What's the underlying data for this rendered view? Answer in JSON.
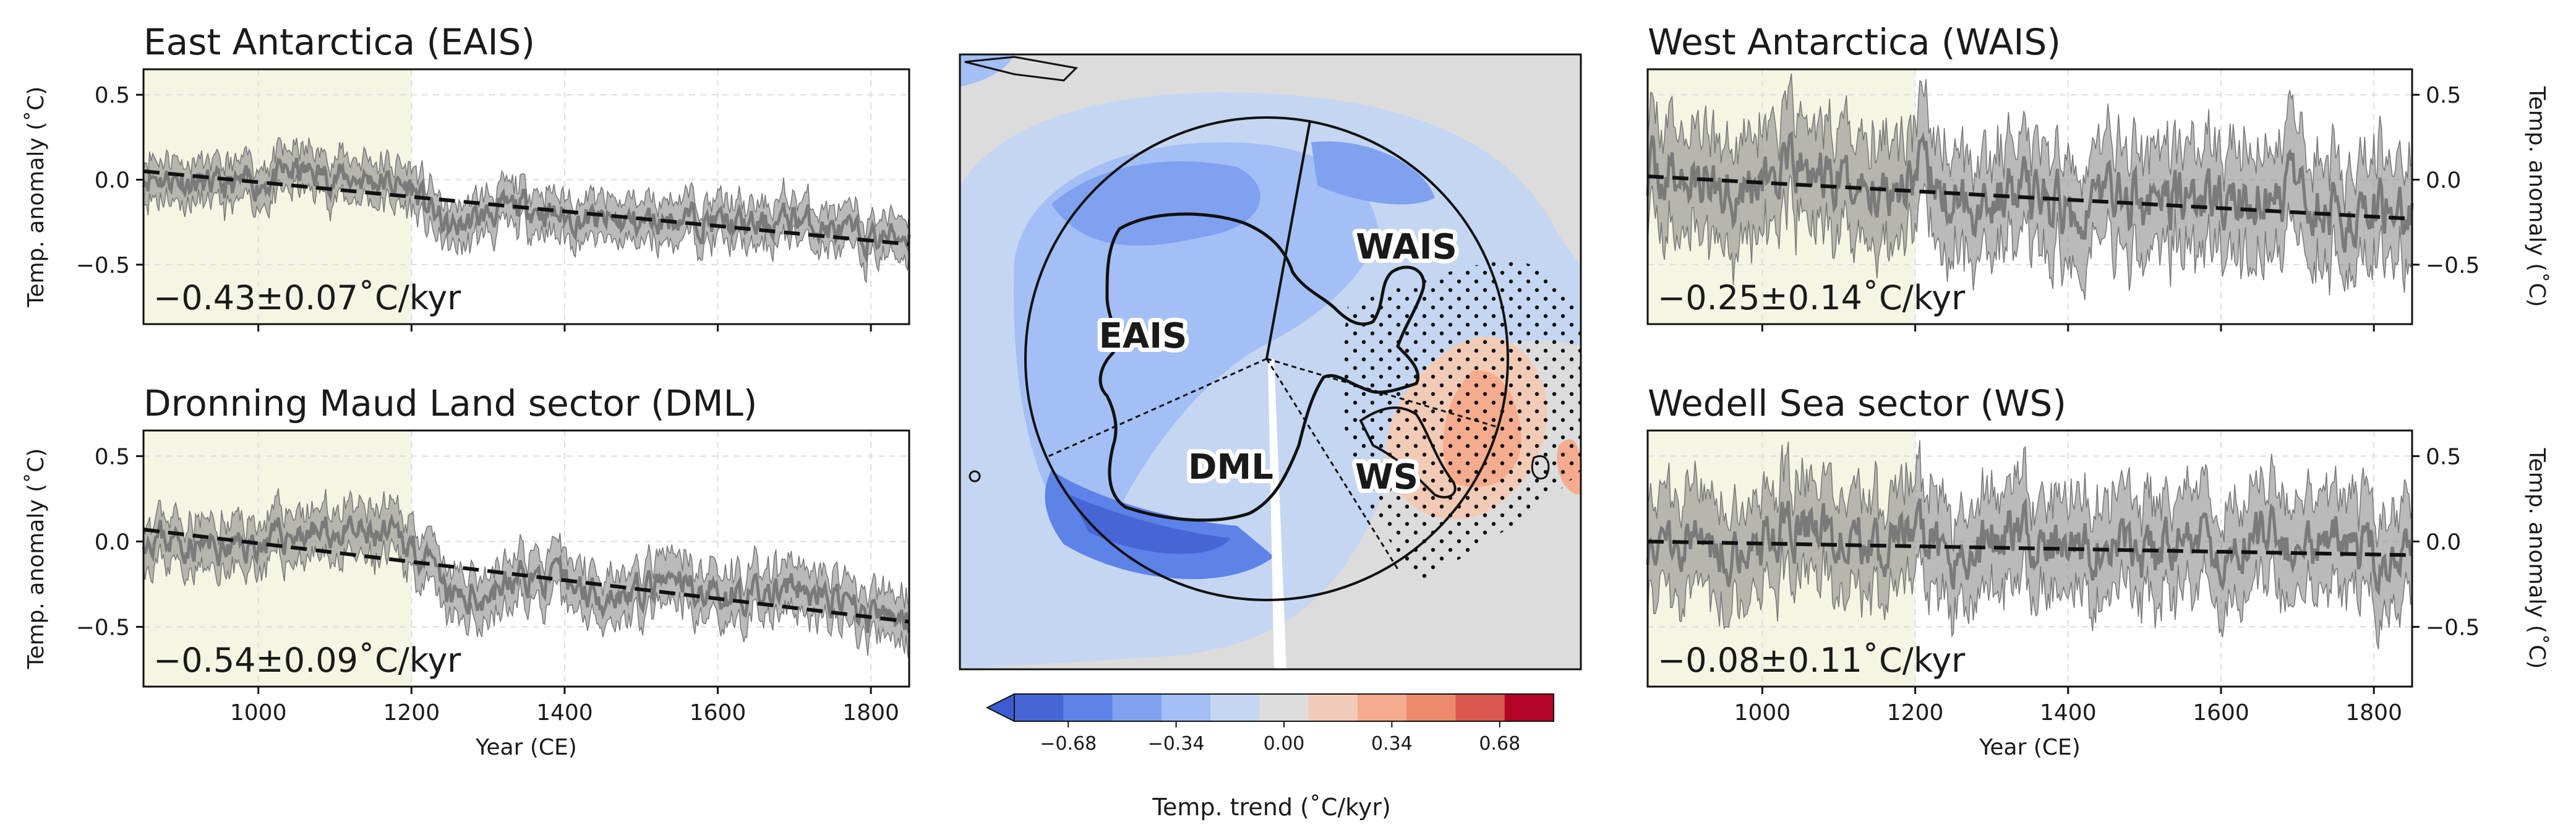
{
  "chart_data": [
    {
      "type": "line",
      "id": "eais",
      "title": "East Antarctica (EAIS)",
      "xlabel": "",
      "ylabel": "Temp. anomaly (˚C)",
      "xlim": [
        850,
        1850
      ],
      "ylim": [
        -0.85,
        0.65
      ],
      "xticks": [
        1000,
        1200,
        1400,
        1600,
        1800
      ],
      "yticks": [
        -0.5,
        0.0,
        0.5
      ],
      "ytick_labels": [
        "−0.5",
        "0.0",
        "0.5"
      ],
      "shade_range": [
        850,
        1200
      ],
      "trend_label": "−0.43±0.07˚C/kyr",
      "trend_line": {
        "x": [
          850,
          1850
        ],
        "y": [
          0.05,
          -0.38
        ]
      },
      "series_mean_anchor": {
        "x": [
          850,
          900,
          950,
          1000,
          1050,
          1100,
          1150,
          1200,
          1250,
          1300,
          1350,
          1400,
          1450,
          1500,
          1550,
          1600,
          1650,
          1700,
          1750,
          1800,
          1850
        ],
        "y": [
          0.03,
          0.0,
          -0.05,
          -0.02,
          0.05,
          0.02,
          0.0,
          -0.05,
          -0.3,
          -0.2,
          -0.15,
          -0.22,
          -0.25,
          -0.25,
          -0.22,
          -0.25,
          -0.28,
          -0.22,
          -0.3,
          -0.35,
          -0.32
        ]
      },
      "band_halfwidth": 0.12,
      "noise": 0.09
    },
    {
      "type": "line",
      "id": "dml",
      "title": "Dronning Maud Land sector (DML)",
      "xlabel": "Year (CE)",
      "ylabel": "Temp. anomaly (˚C)",
      "xlim": [
        850,
        1850
      ],
      "ylim": [
        -0.85,
        0.65
      ],
      "xticks": [
        1000,
        1200,
        1400,
        1600,
        1800
      ],
      "yticks": [
        -0.5,
        0.0,
        0.5
      ],
      "ytick_labels": [
        "−0.5",
        "0.0",
        "0.5"
      ],
      "shade_range": [
        850,
        1200
      ],
      "trend_label": "−0.54±0.09˚C/kyr",
      "trend_line": {
        "x": [
          850,
          1850
        ],
        "y": [
          0.07,
          -0.47
        ]
      },
      "series_mean_anchor": {
        "x": [
          850,
          900,
          950,
          1000,
          1050,
          1100,
          1150,
          1200,
          1250,
          1300,
          1350,
          1400,
          1450,
          1500,
          1550,
          1600,
          1650,
          1700,
          1750,
          1800,
          1850
        ],
        "y": [
          0.05,
          0.0,
          -0.05,
          -0.02,
          0.05,
          0.05,
          0.02,
          0.0,
          -0.35,
          -0.3,
          -0.2,
          -0.25,
          -0.3,
          -0.3,
          -0.25,
          -0.3,
          -0.32,
          -0.28,
          -0.35,
          -0.45,
          -0.45
        ]
      },
      "band_halfwidth": 0.14,
      "noise": 0.1
    },
    {
      "type": "line",
      "id": "wais",
      "title": "West Antarctica (WAIS)",
      "xlabel": "",
      "ylabel": "Temp. anomaly (˚C)",
      "xlim": [
        850,
        1850
      ],
      "ylim": [
        -0.85,
        0.65
      ],
      "xticks": [
        1000,
        1200,
        1400,
        1600,
        1800
      ],
      "yticks": [
        -0.5,
        0.0,
        0.5
      ],
      "ytick_labels": [
        "−0.5",
        "0.0",
        "0.5"
      ],
      "shade_range": [
        850,
        1200
      ],
      "trend_label": "−0.25±0.14˚C/kyr",
      "trend_line": {
        "x": [
          850,
          1850
        ],
        "y": [
          0.02,
          -0.23
        ]
      },
      "series_mean_anchor": {
        "x": [
          850,
          900,
          950,
          1000,
          1050,
          1100,
          1150,
          1200,
          1250,
          1300,
          1350,
          1400,
          1450,
          1500,
          1550,
          1600,
          1650,
          1700,
          1750,
          1800,
          1850
        ],
        "y": [
          0.05,
          0.0,
          -0.05,
          0.0,
          0.05,
          -0.02,
          -0.05,
          0.05,
          -0.15,
          -0.1,
          -0.05,
          -0.2,
          -0.05,
          -0.15,
          -0.1,
          -0.15,
          -0.12,
          -0.05,
          -0.2,
          -0.15,
          -0.18
        ]
      },
      "band_halfwidth": 0.3,
      "noise": 0.18
    },
    {
      "type": "line",
      "id": "ws",
      "title": "Wedell Sea sector (WS)",
      "xlabel": "Year (CE)",
      "ylabel": "Temp. anomaly (˚C)",
      "xlim": [
        850,
        1850
      ],
      "ylim": [
        -0.85,
        0.65
      ],
      "xticks": [
        1000,
        1200,
        1400,
        1600,
        1800
      ],
      "yticks": [
        -0.5,
        0.0,
        0.5
      ],
      "ytick_labels": [
        "−0.5",
        "0.0",
        "0.5"
      ],
      "shade_range": [
        850,
        1200
      ],
      "trend_label": "−0.08±0.11˚C/kyr",
      "trend_line": {
        "x": [
          850,
          1850
        ],
        "y": [
          0.0,
          -0.08
        ]
      },
      "series_mean_anchor": {
        "x": [
          850,
          900,
          950,
          1000,
          1050,
          1100,
          1150,
          1200,
          1250,
          1300,
          1350,
          1400,
          1450,
          1500,
          1550,
          1600,
          1650,
          1700,
          1750,
          1800,
          1850
        ],
        "y": [
          0.0,
          0.05,
          -0.05,
          0.0,
          0.1,
          0.05,
          -0.05,
          0.05,
          -0.1,
          0.0,
          0.05,
          -0.1,
          0.0,
          -0.15,
          0.0,
          -0.05,
          0.05,
          -0.1,
          0.0,
          -0.1,
          -0.05
        ]
      },
      "band_halfwidth": 0.28,
      "noise": 0.17
    },
    {
      "type": "heatmap",
      "id": "map",
      "regions": [
        "EAIS",
        "WAIS",
        "DML",
        "WS"
      ],
      "colorbar": {
        "label": "Temp. trend (˚C/kyr)",
        "ticks": [
          -0.68,
          -0.34,
          0.0,
          0.34,
          0.68
        ],
        "tick_labels": [
          "−0.68",
          "−0.34",
          "0.00",
          "0.34",
          "0.68"
        ],
        "range": [
          -0.85,
          0.85
        ],
        "colors": [
          "#4766d6",
          "#5d82e8",
          "#7fa1f0",
          "#a3bff5",
          "#c5d6f2",
          "#dcdcdc",
          "#f2cbb7",
          "#f5ab8d",
          "#ec8a6d",
          "#d9594c",
          "#b40426"
        ]
      }
    }
  ]
}
